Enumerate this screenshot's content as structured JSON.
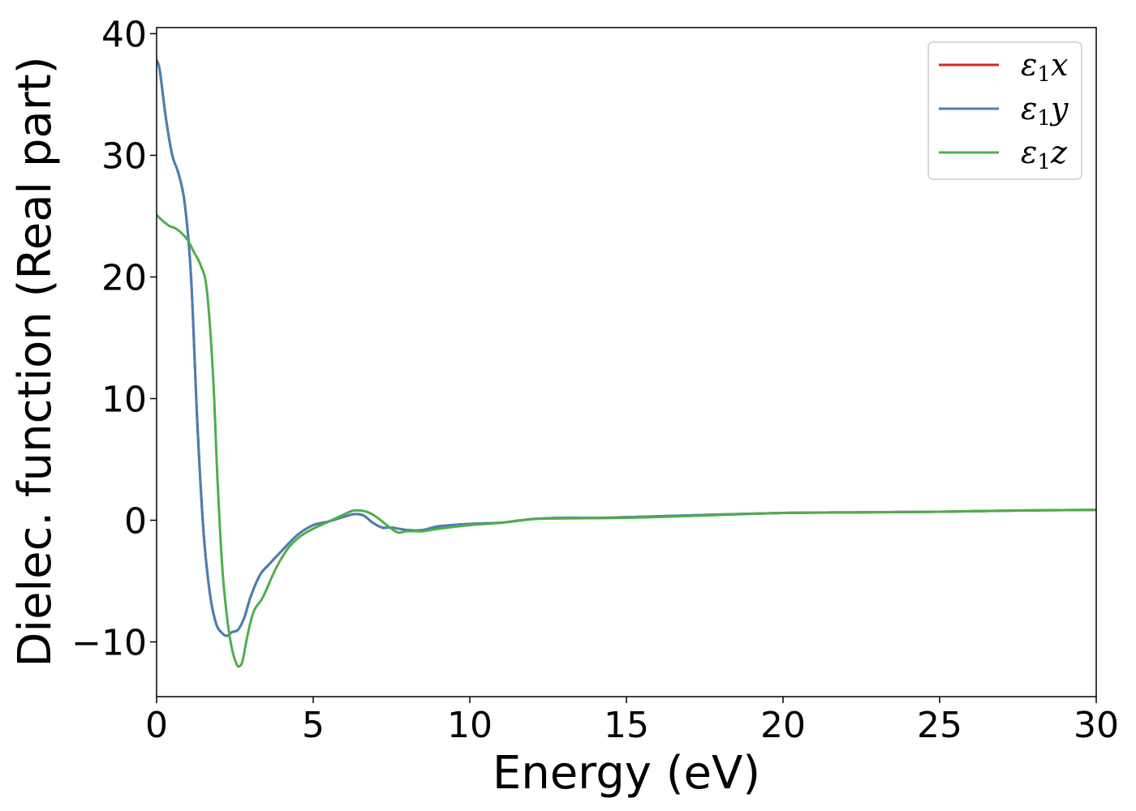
{
  "chart_data": {
    "type": "line",
    "xlabel": "Energy (eV)",
    "ylabel": "Dielec. function (Real part)",
    "xlim": [
      0,
      30
    ],
    "ylim": [
      -14.5,
      40.5
    ],
    "xticks": [
      0,
      5,
      10,
      15,
      20,
      25,
      30
    ],
    "xtick_labels": [
      "0",
      "5",
      "10",
      "15",
      "20",
      "25",
      "30"
    ],
    "yticks": [
      -10,
      0,
      10,
      20,
      30,
      40
    ],
    "ytick_labels": [
      "−10",
      "0",
      "10",
      "20",
      "30",
      "40"
    ],
    "grid": false,
    "legend_position": "top-right",
    "series": [
      {
        "name": "ε1x",
        "legend_main": "ε",
        "legend_sub": "1",
        "legend_tail": "x",
        "color": "#d62728",
        "x": [
          0,
          0.1,
          0.3,
          0.5,
          0.7,
          0.9,
          1.1,
          1.3,
          1.5,
          1.7,
          1.9,
          2.1,
          2.25,
          2.4,
          2.6,
          2.8,
          3.0,
          3.3,
          3.6,
          4.0,
          4.5,
          5.0,
          5.5,
          6.0,
          6.3,
          6.6,
          6.9,
          7.2,
          7.5,
          8.0,
          8.5,
          9.0,
          10.0,
          11.0,
          12.0,
          13.0,
          14.0,
          15.0,
          17.0,
          20.0,
          22.5,
          25.0,
          27.5,
          30.0
        ],
        "values": [
          37.8,
          37.0,
          33.0,
          30.0,
          28.5,
          26.0,
          20.0,
          8.0,
          -1.0,
          -6.0,
          -8.5,
          -9.3,
          -9.5,
          -9.2,
          -9.0,
          -8.0,
          -6.3,
          -4.5,
          -3.6,
          -2.5,
          -1.2,
          -0.4,
          -0.1,
          0.3,
          0.5,
          0.4,
          -0.2,
          -0.6,
          -0.6,
          -0.8,
          -0.8,
          -0.5,
          -0.3,
          -0.2,
          0.1,
          0.2,
          0.2,
          0.25,
          0.4,
          0.6,
          0.65,
          0.7,
          0.8,
          0.85
        ]
      },
      {
        "name": "ε1y",
        "legend_main": "ε",
        "legend_sub": "1",
        "legend_tail": "y",
        "color": "#4a7fb5",
        "x": [
          0,
          0.1,
          0.3,
          0.5,
          0.7,
          0.9,
          1.1,
          1.3,
          1.5,
          1.7,
          1.9,
          2.1,
          2.25,
          2.4,
          2.6,
          2.8,
          3.0,
          3.3,
          3.6,
          4.0,
          4.5,
          5.0,
          5.5,
          6.0,
          6.3,
          6.6,
          6.9,
          7.2,
          7.5,
          8.0,
          8.5,
          9.0,
          10.0,
          11.0,
          12.0,
          13.0,
          14.0,
          15.0,
          17.0,
          20.0,
          22.5,
          25.0,
          27.5,
          30.0
        ],
        "values": [
          37.8,
          37.0,
          33.0,
          30.0,
          28.5,
          26.0,
          20.0,
          8.0,
          -1.0,
          -6.0,
          -8.5,
          -9.3,
          -9.5,
          -9.2,
          -9.0,
          -8.0,
          -6.3,
          -4.5,
          -3.6,
          -2.5,
          -1.2,
          -0.4,
          -0.1,
          0.3,
          0.5,
          0.4,
          -0.2,
          -0.6,
          -0.6,
          -0.8,
          -0.8,
          -0.5,
          -0.3,
          -0.2,
          0.1,
          0.2,
          0.2,
          0.25,
          0.4,
          0.6,
          0.65,
          0.7,
          0.8,
          0.85
        ]
      },
      {
        "name": "ε1z",
        "legend_main": "ε",
        "legend_sub": "1",
        "legend_tail": "z",
        "color": "#4daf4a",
        "x": [
          0,
          0.2,
          0.4,
          0.6,
          0.8,
          1.0,
          1.2,
          1.4,
          1.6,
          1.8,
          1.95,
          2.1,
          2.25,
          2.4,
          2.55,
          2.65,
          2.75,
          2.9,
          3.1,
          3.4,
          3.8,
          4.2,
          4.6,
          5.0,
          5.5,
          6.0,
          6.3,
          6.7,
          7.0,
          7.4,
          7.7,
          8.0,
          8.5,
          9.0,
          10.0,
          11.0,
          12.0,
          13.0,
          15.0,
          17.0,
          20.0,
          22.5,
          25.0,
          27.5,
          30.0
        ],
        "values": [
          25.1,
          24.6,
          24.2,
          24.0,
          23.6,
          23.0,
          22.0,
          21.0,
          19.0,
          12.0,
          3.0,
          -4.0,
          -8.0,
          -10.5,
          -11.8,
          -12.0,
          -11.5,
          -9.5,
          -7.5,
          -6.3,
          -4.0,
          -2.3,
          -1.3,
          -0.7,
          -0.1,
          0.5,
          0.8,
          0.7,
          0.3,
          -0.5,
          -1.0,
          -0.9,
          -0.9,
          -0.7,
          -0.4,
          -0.2,
          0.1,
          0.15,
          0.2,
          0.35,
          0.6,
          0.65,
          0.7,
          0.8,
          0.85
        ]
      }
    ]
  }
}
